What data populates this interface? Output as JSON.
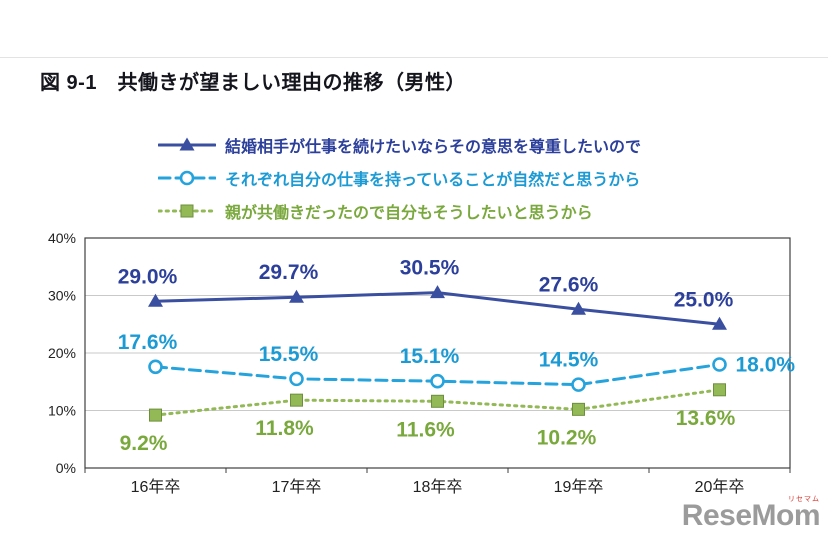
{
  "page": {
    "title": "図 9-1　共働きが望ましい理由の推移（男性）"
  },
  "chart_data": {
    "type": "line",
    "figure_label": "図 9-1",
    "title": "共働きが望ましい理由の推移（男性）",
    "categories": [
      "16年卒",
      "17年卒",
      "18年卒",
      "19年卒",
      "20年卒"
    ],
    "series": [
      {
        "name": "結婚相手が仕事を続けたいならその意思を尊重したいので",
        "values": [
          29.0,
          29.7,
          30.5,
          27.6,
          25.0
        ],
        "color": "#3a4fa0",
        "label_color": "#2b3f9b",
        "marker": "triangle",
        "line": "solid"
      },
      {
        "name": "それぞれ自分の仕事を持っていることが自然だと思うから",
        "values": [
          17.6,
          15.5,
          15.1,
          14.5,
          18.0
        ],
        "color": "#25a3dc",
        "label_color": "#1b9ad4",
        "marker": "circle-open",
        "line": "dashed"
      },
      {
        "name": "親が共働きだったので自分もそうしたいと思うから",
        "values": [
          9.2,
          11.8,
          11.6,
          10.2,
          13.6
        ],
        "color": "#93b956",
        "label_color": "#79a83c",
        "marker": "square",
        "line": "dotted"
      }
    ],
    "ylim": [
      0,
      40
    ],
    "ytick_step": 10,
    "ytick_labels": [
      "0%",
      "10%",
      "20%",
      "30%",
      "40%"
    ],
    "grid": true,
    "legend_position": "top",
    "data_label_format": "0.0%"
  },
  "watermark": {
    "text": "ReseMom",
    "ruby": "リセマム"
  }
}
